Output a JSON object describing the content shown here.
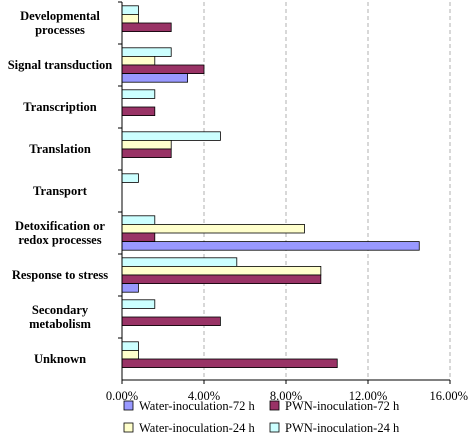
{
  "chart_data": {
    "type": "bar",
    "orientation": "horizontal",
    "title": "",
    "xlabel": "",
    "ylabel": "",
    "xlim": [
      0,
      16
    ],
    "x_ticks": [
      0,
      4,
      8,
      12,
      16
    ],
    "x_tick_labels": [
      "0.00%",
      "4.00%",
      "8.00%",
      "12.00%",
      "16.00%"
    ],
    "grid": "vertical dashed",
    "legend_position": "bottom",
    "categories": [
      [
        "Developmental",
        "processes"
      ],
      [
        "Signal transduction"
      ],
      [
        "Transcription"
      ],
      [
        "Translation"
      ],
      [
        "Transport"
      ],
      [
        "Detoxification or",
        "redox processes"
      ],
      [
        "Response to stress"
      ],
      [
        "Secondary",
        "metabolism"
      ],
      [
        "Unknown"
      ]
    ],
    "series": [
      {
        "name": "PWN-inoculation-24 h",
        "color": "#ccffff",
        "values": [
          0.8,
          2.4,
          1.6,
          4.8,
          0.8,
          1.6,
          5.6,
          1.6,
          0.8
        ]
      },
      {
        "name": "Water-inoculation-24 h",
        "color": "#ffffcc",
        "values": [
          0.8,
          1.6,
          0,
          2.4,
          0,
          8.9,
          9.7,
          0,
          0.8
        ]
      },
      {
        "name": "PWN-inoculation-72 h",
        "color": "#993366",
        "values": [
          2.4,
          4.0,
          1.6,
          2.4,
          0,
          1.6,
          9.7,
          4.8,
          10.5
        ]
      },
      {
        "name": "Water-inoculation-72 h",
        "color": "#9999ff",
        "values": [
          0,
          3.2,
          0,
          0,
          0,
          14.5,
          0.8,
          0,
          0
        ]
      }
    ],
    "legend": [
      {
        "name": "Water-inoculation-72 h",
        "color": "#9999ff"
      },
      {
        "name": "PWN-inoculation-72 h",
        "color": "#993366"
      },
      {
        "name": "Water-inoculation-24 h",
        "color": "#ffffcc"
      },
      {
        "name": "PWN-inoculation-24 h",
        "color": "#ccffff"
      }
    ]
  }
}
